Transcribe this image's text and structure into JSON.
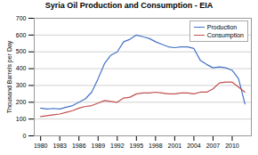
{
  "chart_data": {
    "type": "line",
    "title": "Syria Oil Production and Consumption - EIA",
    "ylabel": "Thousand Barrels per Day",
    "x": [
      1980,
      1981,
      1982,
      1983,
      1984,
      1985,
      1986,
      1987,
      1988,
      1989,
      1990,
      1991,
      1992,
      1993,
      1994,
      1995,
      1996,
      1997,
      1998,
      1999,
      2000,
      2001,
      2002,
      2003,
      2004,
      2005,
      2006,
      2007,
      2008,
      2009,
      2010,
      2011,
      2012
    ],
    "series": [
      {
        "name": "Production",
        "color": "#4472c4",
        "values": [
          165,
          160,
          163,
          160,
          170,
          180,
          200,
          220,
          260,
          340,
          430,
          480,
          500,
          560,
          575,
          600,
          590,
          580,
          560,
          545,
          530,
          525,
          530,
          530,
          520,
          450,
          425,
          405,
          410,
          405,
          390,
          340,
          190
        ]
      },
      {
        "name": "Consumption",
        "color": "#c0504d",
        "values": [
          115,
          120,
          125,
          130,
          140,
          150,
          165,
          175,
          180,
          195,
          210,
          205,
          200,
          225,
          230,
          250,
          255,
          255,
          260,
          255,
          250,
          250,
          255,
          255,
          250,
          260,
          260,
          280,
          315,
          320,
          320,
          290,
          260
        ]
      }
    ],
    "xlim": [
      1979,
      2013
    ],
    "xticks": [
      1980,
      1983,
      1986,
      1989,
      1992,
      1995,
      1998,
      2001,
      2004,
      2007,
      2010
    ],
    "ylim": [
      0,
      700
    ],
    "yticks": [
      0,
      100,
      200,
      300,
      400,
      500,
      600,
      700
    ],
    "grid": true,
    "legend": "upper right"
  }
}
